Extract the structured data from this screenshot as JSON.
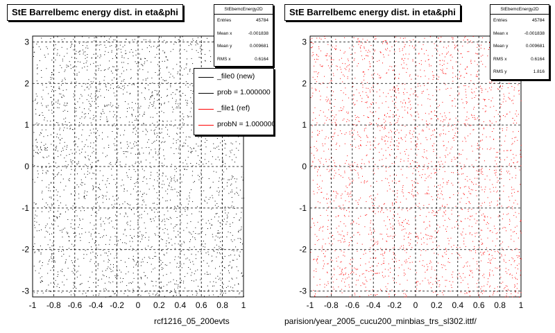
{
  "panels": [
    {
      "title": "StE Barrelbemc energy dist. in eta&phi",
      "stats": {
        "name": "StEbemcEnergy2D",
        "rows": [
          {
            "k": "Entries",
            "v": "45784"
          },
          {
            "k": "Mean x",
            "v": "-0.001838"
          },
          {
            "k": "Mean y",
            "v": "0.009681"
          },
          {
            "k": "RMS x",
            "v": "0.6164"
          }
        ]
      },
      "footer": "rcf1216_05_200evts"
    },
    {
      "title": "StE Barrelbemc energy dist. in eta&phi",
      "stats": {
        "name": "StEbemcEnergy2D",
        "rows": [
          {
            "k": "Entries",
            "v": "45784"
          },
          {
            "k": "Mean x",
            "v": "-0.001838"
          },
          {
            "k": "Mean y",
            "v": "0.009681"
          },
          {
            "k": "RMS x",
            "v": "0.6164"
          },
          {
            "k": "RMS y",
            "v": "1.816"
          }
        ]
      },
      "footer": "parision/year_2005_cucu200_minbias_trs_sl302.ittf/"
    }
  ],
  "legend": {
    "items": [
      {
        "label": "_file0 (new)",
        "color": "#000000"
      },
      {
        "label": "prob = 1.000000",
        "color": "#000000"
      },
      {
        "label": "_file1 (ref)",
        "color": "#ff0000"
      },
      {
        "label": "probN = 1.000000",
        "color": "#ff0000"
      }
    ]
  },
  "chart_data": [
    {
      "type": "scatter",
      "title": "StE Barrelbemc energy dist. in eta&phi",
      "xlim": [
        -1,
        1
      ],
      "ylim": [
        -3.14,
        3.14
      ],
      "x_ticks": [
        "-1",
        "-0.8",
        "-0.6",
        "-0.4",
        "-0.2",
        "0",
        "0.2",
        "0.4",
        "0.6",
        "0.8",
        "1"
      ],
      "y_ticks": [
        "-3",
        "-2",
        "-1",
        "0",
        "1",
        "2",
        "3"
      ],
      "grid": true,
      "distribution": "uniform",
      "series": [
        {
          "name": "_file0 (new)",
          "color": "#000000"
        }
      ]
    },
    {
      "type": "scatter",
      "title": "StE Barrelbemc energy dist. in eta&phi",
      "xlim": [
        -1,
        1
      ],
      "ylim": [
        -3.14,
        3.14
      ],
      "x_ticks": [
        "-1",
        "-0.8",
        "-0.6",
        "-0.4",
        "-0.2",
        "0",
        "0.2",
        "0.4",
        "0.6",
        "0.8",
        "1"
      ],
      "y_ticks": [
        "-3",
        "-2",
        "-1",
        "0",
        "1",
        "2",
        "3"
      ],
      "grid": true,
      "distribution": "uniform",
      "series": [
        {
          "name": "_file1 (ref)",
          "color": "#ff0000"
        }
      ]
    }
  ]
}
